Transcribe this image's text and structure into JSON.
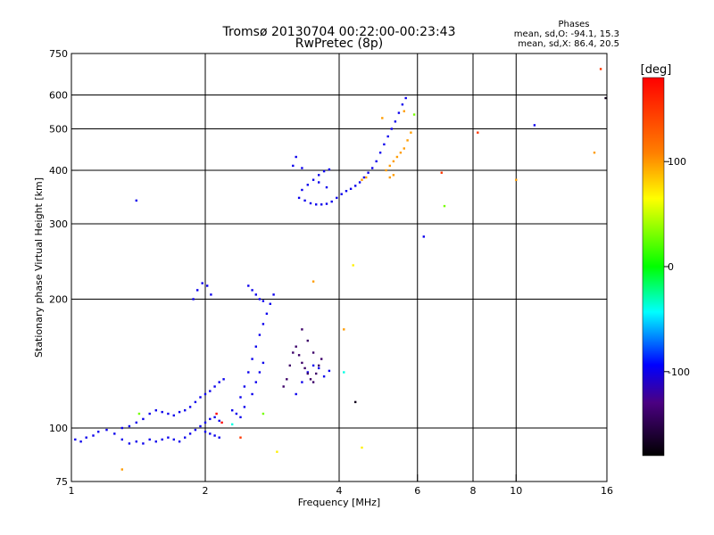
{
  "chart_data": {
    "type": "scatter",
    "title": "Tromsø 20130704 00:22:00-00:23:43",
    "subtitle": "RwPretec (8p)",
    "xlabel": "Frequency [MHz]",
    "ylabel": "Stationary phase Virtual Height [km]",
    "x_scale": "log",
    "y_scale": "log",
    "xlim": [
      1,
      16
    ],
    "ylim": [
      75,
      750
    ],
    "x_ticks": [
      "1",
      "2",
      "4",
      "6",
      "8",
      "10",
      "16"
    ],
    "x_tick_values": [
      1,
      2,
      4,
      6,
      8,
      10,
      16
    ],
    "x_gridlines": [
      2,
      4,
      6,
      8,
      10
    ],
    "y_ticks": [
      "75",
      "100",
      "200",
      "300",
      "400",
      "500",
      "600",
      "750"
    ],
    "y_tick_values": [
      75,
      100,
      200,
      300,
      400,
      500,
      600,
      750
    ],
    "y_gridlines": [
      100,
      200,
      300,
      400,
      500,
      600
    ],
    "grid": true,
    "stats": {
      "heading": "Phases",
      "line_o": "mean, sd,O: -94.1, 15.3",
      "line_x": "mean, sd,X: 86.4, 20.5"
    },
    "colorbar": {
      "label": "[deg]",
      "min": -180,
      "max": 180,
      "ticks": [
        "100",
        "0",
        "-100"
      ],
      "tick_values": [
        100,
        0,
        -100
      ]
    },
    "series": [
      {
        "color_value": -100,
        "points": [
          [
            1.02,
            94
          ],
          [
            1.05,
            93
          ],
          [
            1.08,
            95
          ],
          [
            1.12,
            96
          ],
          [
            1.15,
            98
          ],
          [
            1.2,
            99
          ],
          [
            1.25,
            97
          ],
          [
            1.3,
            100
          ],
          [
            1.35,
            101
          ],
          [
            1.4,
            103
          ],
          [
            1.45,
            105
          ],
          [
            1.5,
            108
          ],
          [
            1.55,
            110
          ],
          [
            1.6,
            109
          ],
          [
            1.65,
            108
          ],
          [
            1.7,
            107
          ],
          [
            1.75,
            109
          ],
          [
            1.8,
            110
          ],
          [
            1.85,
            112
          ],
          [
            1.9,
            115
          ],
          [
            1.95,
            118
          ],
          [
            2.0,
            120
          ],
          [
            2.05,
            122
          ],
          [
            2.1,
            125
          ],
          [
            2.15,
            128
          ],
          [
            2.2,
            130
          ],
          [
            1.3,
            94
          ],
          [
            1.35,
            92
          ],
          [
            1.4,
            93
          ],
          [
            1.45,
            92
          ],
          [
            1.5,
            94
          ],
          [
            1.55,
            93
          ],
          [
            1.6,
            94
          ],
          [
            1.65,
            95
          ],
          [
            1.7,
            94
          ],
          [
            1.75,
            93
          ],
          [
            1.8,
            95
          ],
          [
            1.85,
            97
          ],
          [
            1.9,
            99
          ],
          [
            1.95,
            101
          ],
          [
            2.0,
            103
          ],
          [
            2.05,
            105
          ],
          [
            2.1,
            106
          ],
          [
            2.15,
            104
          ],
          [
            2.0,
            98
          ],
          [
            2.05,
            97
          ],
          [
            2.1,
            96
          ],
          [
            2.15,
            95
          ],
          [
            1.88,
            200
          ],
          [
            1.92,
            210
          ],
          [
            1.97,
            218
          ],
          [
            2.02,
            215
          ],
          [
            2.06,
            205
          ],
          [
            2.4,
            118
          ],
          [
            2.45,
            125
          ],
          [
            2.5,
            135
          ],
          [
            2.55,
            145
          ],
          [
            2.6,
            155
          ],
          [
            2.65,
            165
          ],
          [
            2.7,
            175
          ],
          [
            2.75,
            185
          ],
          [
            2.8,
            195
          ],
          [
            2.85,
            205
          ],
          [
            2.5,
            215
          ],
          [
            2.55,
            210
          ],
          [
            2.6,
            205
          ],
          [
            2.65,
            200
          ],
          [
            2.7,
            198
          ],
          [
            2.3,
            110
          ],
          [
            2.35,
            108
          ],
          [
            2.4,
            106
          ],
          [
            2.45,
            112
          ],
          [
            2.55,
            120
          ],
          [
            2.6,
            128
          ],
          [
            2.65,
            135
          ],
          [
            2.7,
            142
          ],
          [
            3.2,
            120
          ],
          [
            3.3,
            128
          ],
          [
            3.4,
            135
          ],
          [
            3.5,
            140
          ],
          [
            3.6,
            138
          ],
          [
            3.7,
            132
          ],
          [
            3.8,
            136
          ],
          [
            3.25,
            345
          ],
          [
            3.35,
            340
          ],
          [
            3.45,
            335
          ],
          [
            3.55,
            333
          ],
          [
            3.65,
            333
          ],
          [
            3.75,
            334
          ],
          [
            3.85,
            338
          ],
          [
            3.95,
            345
          ],
          [
            4.05,
            352
          ],
          [
            4.15,
            358
          ],
          [
            4.25,
            362
          ],
          [
            4.35,
            368
          ],
          [
            4.45,
            375
          ],
          [
            4.55,
            385
          ],
          [
            4.65,
            395
          ],
          [
            4.75,
            405
          ],
          [
            4.85,
            420
          ],
          [
            4.95,
            440
          ],
          [
            5.05,
            460
          ],
          [
            5.15,
            480
          ],
          [
            5.25,
            500
          ],
          [
            5.35,
            520
          ],
          [
            5.45,
            545
          ],
          [
            5.55,
            570
          ],
          [
            5.65,
            590
          ],
          [
            3.3,
            360
          ],
          [
            3.4,
            370
          ],
          [
            3.5,
            380
          ],
          [
            3.6,
            390
          ],
          [
            3.7,
            398
          ],
          [
            3.8,
            402
          ],
          [
            3.3,
            405
          ],
          [
            3.6,
            375
          ],
          [
            3.75,
            365
          ],
          [
            1.4,
            340
          ],
          [
            3.15,
            410
          ],
          [
            3.2,
            430
          ],
          [
            6.2,
            280
          ],
          [
            11.0,
            510
          ]
        ]
      },
      {
        "color_value": -140,
        "points": [
          [
            3.0,
            125
          ],
          [
            3.05,
            130
          ],
          [
            3.1,
            140
          ],
          [
            3.15,
            150
          ],
          [
            3.2,
            155
          ],
          [
            3.25,
            148
          ],
          [
            3.3,
            142
          ],
          [
            3.35,
            138
          ],
          [
            3.4,
            134
          ],
          [
            3.45,
            130
          ],
          [
            3.5,
            128
          ],
          [
            3.55,
            134
          ],
          [
            3.6,
            140
          ],
          [
            3.65,
            145
          ],
          [
            3.3,
            170
          ],
          [
            3.4,
            160
          ],
          [
            3.5,
            150
          ]
        ]
      },
      {
        "color_value": 100,
        "points": [
          [
            5.1,
            400
          ],
          [
            5.2,
            410
          ],
          [
            5.3,
            420
          ],
          [
            5.4,
            430
          ],
          [
            5.5,
            440
          ],
          [
            5.6,
            450
          ],
          [
            5.7,
            470
          ],
          [
            5.8,
            490
          ],
          [
            5.2,
            385
          ],
          [
            5.3,
            390
          ],
          [
            4.5,
            380
          ],
          [
            4.6,
            385
          ],
          [
            5.0,
            530
          ],
          [
            5.6,
            550
          ],
          [
            15.0,
            440
          ],
          [
            10.0,
            380
          ],
          [
            4.1,
            170
          ],
          [
            3.5,
            220
          ],
          [
            1.3,
            80
          ]
        ]
      },
      {
        "color_value": 150,
        "points": [
          [
            2.4,
            95
          ],
          [
            8.2,
            490
          ],
          [
            6.8,
            395
          ],
          [
            15.5,
            690
          ]
        ]
      },
      {
        "color_value": 30,
        "points": [
          [
            5.9,
            540
          ],
          [
            6.9,
            330
          ],
          [
            1.42,
            108
          ],
          [
            2.7,
            108
          ]
        ]
      },
      {
        "color_value": 180,
        "points": [
          [
            2.12,
            108
          ],
          [
            2.18,
            103
          ]
        ]
      },
      {
        "color_value": 70,
        "points": [
          [
            4.5,
            90
          ],
          [
            4.3,
            240
          ],
          [
            2.9,
            88
          ]
        ]
      },
      {
        "color_value": -170,
        "points": [
          [
            4.35,
            115
          ],
          [
            15.9,
            590
          ]
        ]
      },
      {
        "color_value": -40,
        "points": [
          [
            2.3,
            102
          ],
          [
            4.1,
            135
          ]
        ]
      }
    ]
  }
}
